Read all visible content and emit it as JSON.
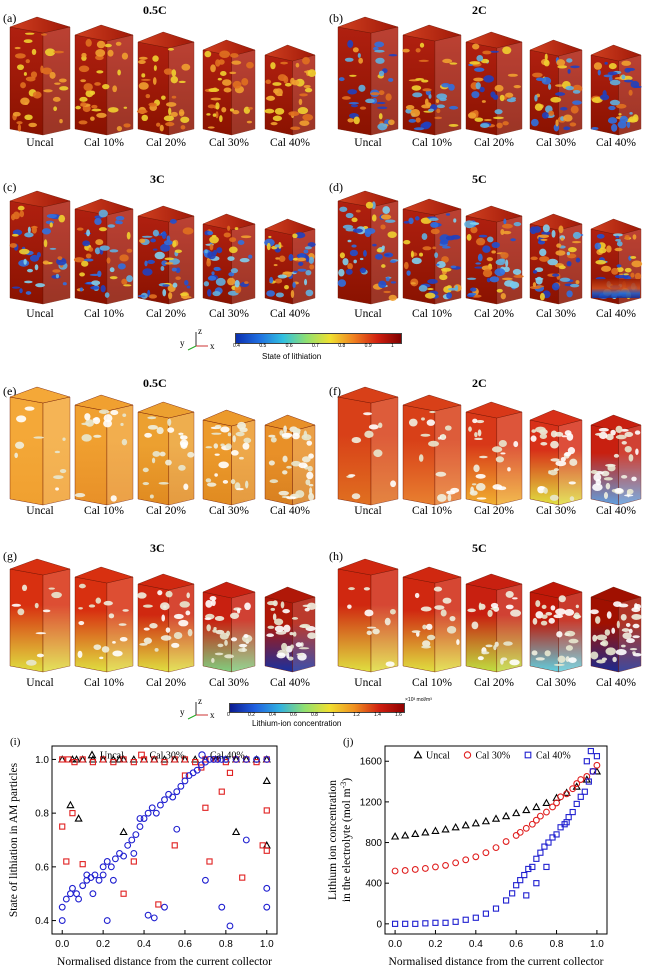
{
  "part1": {
    "colorbar_title": "State of lithiation",
    "colorbar_ticks": [
      "0.4",
      "0.5",
      "0.6",
      "0.7",
      "0.8",
      "0.9",
      "1"
    ],
    "panels": [
      {
        "label": "(a)",
        "title": "0.5C",
        "dark": 0.15
      },
      {
        "label": "(b)",
        "title": "2C",
        "dark": 0.3
      },
      {
        "label": "(c)",
        "title": "3C",
        "dark": 0.45
      },
      {
        "label": "(d)",
        "title": "5C",
        "dark": 0.6
      }
    ]
  },
  "part2": {
    "colorbar_title": "Lithium-ion concentration",
    "colorbar_unit": "×10³ mol/m³",
    "colorbar_ticks": [
      "0",
      "0.2",
      "0.4",
      "0.6",
      "0.8",
      "1",
      "1.2",
      "1.4",
      "1.6"
    ],
    "panels": [
      {
        "label": "(e)",
        "title": "0.5C"
      },
      {
        "label": "(f)",
        "title": "2C"
      },
      {
        "label": "(g)",
        "title": "3C"
      },
      {
        "label": "(h)",
        "title": "5C"
      }
    ]
  },
  "captions": [
    "Uncal",
    "Cal 10%",
    "Cal 20%",
    "Cal 30%",
    "Cal 40%"
  ],
  "axis_letters": {
    "z": "z",
    "y": "y",
    "x": "x"
  },
  "chart_data": [
    {
      "type": "scatter",
      "panel_label": "(i)",
      "xlabel": "Normalised distance from the current collector",
      "ylabel": "State of lithiation in AM particles",
      "xlim": [
        -0.05,
        1.05
      ],
      "ylim": [
        0.35,
        1.05
      ],
      "xticks": [
        "0.0",
        "0.2",
        "0.4",
        "0.6",
        "0.8",
        "1.0"
      ],
      "yticks": [
        "0.4",
        "0.6",
        "0.8",
        "1.0"
      ],
      "series": [
        {
          "name": "Uncal",
          "marker": "triangle",
          "color": "#000000",
          "x": [
            0.0,
            0.05,
            0.07,
            0.1,
            0.15,
            0.2,
            0.25,
            0.28,
            0.3,
            0.35,
            0.4,
            0.45,
            0.5,
            0.55,
            0.6,
            0.65,
            0.7,
            0.75,
            0.8,
            0.85,
            0.9,
            0.95,
            1.0,
            0.04,
            0.08,
            0.3,
            0.85,
            1.0,
            1.0
          ],
          "y": [
            1.0,
            1.0,
            1.0,
            1.0,
            1.0,
            1.0,
            1.0,
            1.0,
            1.0,
            1.0,
            1.0,
            1.0,
            1.0,
            1.0,
            1.0,
            1.0,
            1.0,
            1.0,
            1.0,
            1.0,
            1.0,
            1.0,
            1.0,
            0.83,
            0.78,
            0.73,
            0.73,
            0.92,
            0.68
          ]
        },
        {
          "name": "Cal 30%",
          "marker": "square",
          "color": "#e02020",
          "x": [
            0.0,
            0.03,
            0.06,
            0.1,
            0.15,
            0.2,
            0.25,
            0.3,
            0.35,
            0.4,
            0.45,
            0.5,
            0.55,
            0.6,
            0.65,
            0.7,
            0.75,
            0.8,
            0.85,
            0.9,
            0.95,
            1.0,
            0.0,
            0.02,
            0.1,
            0.05,
            0.3,
            0.35,
            0.47,
            0.55,
            0.7,
            0.78,
            0.82,
            0.88,
            0.98,
            1.0,
            1.0,
            0.6,
            0.68,
            0.72
          ],
          "y": [
            1.0,
            1.0,
            0.99,
            1.0,
            0.99,
            1.0,
            0.99,
            1.0,
            0.99,
            1.0,
            1.0,
            0.99,
            1.0,
            1.0,
            0.99,
            1.0,
            1.0,
            0.99,
            1.0,
            1.0,
            0.99,
            1.0,
            0.75,
            0.62,
            0.61,
            0.8,
            0.5,
            0.62,
            0.46,
            0.68,
            0.82,
            0.88,
            0.95,
            0.56,
            0.68,
            0.66,
            0.81,
            0.94,
            0.97,
            0.62
          ]
        },
        {
          "name": "Cal 40%",
          "marker": "circle",
          "color": "#2020d0",
          "x": [
            0.0,
            0.0,
            0.02,
            0.04,
            0.05,
            0.07,
            0.08,
            0.1,
            0.12,
            0.14,
            0.16,
            0.18,
            0.2,
            0.2,
            0.22,
            0.24,
            0.26,
            0.28,
            0.3,
            0.32,
            0.34,
            0.36,
            0.38,
            0.4,
            0.42,
            0.44,
            0.46,
            0.48,
            0.5,
            0.52,
            0.54,
            0.56,
            0.58,
            0.6,
            0.62,
            0.64,
            0.66,
            0.68,
            0.7,
            0.72,
            0.74,
            0.76,
            0.78,
            0.8,
            0.85,
            0.9,
            0.95,
            1.0,
            0.22,
            0.25,
            0.42,
            0.45,
            0.5,
            0.7,
            0.78,
            0.82,
            0.9,
            1.0,
            1.0,
            0.12,
            0.15,
            0.35,
            0.38,
            0.56
          ],
          "y": [
            0.4,
            0.45,
            0.48,
            0.5,
            0.52,
            0.5,
            0.48,
            0.53,
            0.55,
            0.56,
            0.57,
            0.55,
            0.57,
            0.6,
            0.62,
            0.6,
            0.63,
            0.65,
            0.64,
            0.68,
            0.7,
            0.72,
            0.75,
            0.78,
            0.8,
            0.82,
            0.8,
            0.83,
            0.85,
            0.87,
            0.86,
            0.88,
            0.9,
            0.92,
            0.94,
            0.95,
            0.96,
            0.98,
            0.99,
            1.0,
            1.0,
            1.0,
            1.0,
            1.0,
            1.0,
            1.0,
            1.0,
            1.0,
            0.4,
            0.55,
            0.42,
            0.41,
            0.45,
            0.55,
            0.45,
            0.38,
            0.7,
            0.52,
            0.45,
            0.57,
            0.5,
            0.65,
            0.78,
            0.74
          ]
        }
      ]
    },
    {
      "type": "scatter",
      "panel_label": "(j)",
      "xlabel": "Normalised distance from the current collector",
      "ylabel_line1": "Lithium ion concentration",
      "ylabel_line2": "in the electrolyte (mol m",
      "ylabel_sup": "-3",
      "ylabel_close": ")",
      "xlim": [
        -0.05,
        1.05
      ],
      "ylim": [
        -100,
        1750
      ],
      "xticks": [
        "0.0",
        "0.2",
        "0.4",
        "0.6",
        "0.8",
        "1.0"
      ],
      "yticks": [
        "0",
        "400",
        "800",
        "1200",
        "1600"
      ],
      "series": [
        {
          "name": "Uncal",
          "marker": "triangle",
          "color": "#000000",
          "x": [
            0.0,
            0.05,
            0.1,
            0.15,
            0.2,
            0.25,
            0.3,
            0.35,
            0.4,
            0.45,
            0.5,
            0.55,
            0.6,
            0.65,
            0.7,
            0.75,
            0.8,
            0.85,
            0.9,
            0.95,
            1.0
          ],
          "y": [
            860,
            870,
            885,
            900,
            915,
            930,
            950,
            970,
            990,
            1010,
            1035,
            1060,
            1090,
            1120,
            1150,
            1190,
            1240,
            1290,
            1350,
            1420,
            1500
          ]
        },
        {
          "name": "Cal 30%",
          "marker": "circle",
          "color": "#e02020",
          "x": [
            0.0,
            0.05,
            0.1,
            0.15,
            0.2,
            0.25,
            0.3,
            0.35,
            0.4,
            0.45,
            0.5,
            0.55,
            0.6,
            0.62,
            0.65,
            0.68,
            0.7,
            0.72,
            0.75,
            0.78,
            0.8,
            0.82,
            0.85,
            0.88,
            0.9,
            0.92,
            0.95,
            0.98,
            1.0
          ],
          "y": [
            520,
            525,
            535,
            545,
            560,
            575,
            600,
            630,
            660,
            700,
            750,
            810,
            870,
            900,
            940,
            980,
            1020,
            1060,
            1100,
            1150,
            1190,
            1250,
            1280,
            1330,
            1380,
            1420,
            1450,
            1500,
            1560
          ]
        },
        {
          "name": "Cal 40%",
          "marker": "square",
          "color": "#2020d0",
          "x": [
            0.0,
            0.05,
            0.1,
            0.15,
            0.2,
            0.25,
            0.3,
            0.35,
            0.4,
            0.45,
            0.5,
            0.55,
            0.58,
            0.6,
            0.62,
            0.64,
            0.66,
            0.68,
            0.7,
            0.72,
            0.74,
            0.76,
            0.78,
            0.8,
            0.82,
            0.84,
            0.86,
            0.88,
            0.9,
            0.92,
            0.94,
            0.96,
            0.98,
            1.0,
            0.65,
            0.7,
            0.75,
            0.85,
            0.95,
            0.97
          ],
          "y": [
            0,
            0,
            0,
            5,
            10,
            10,
            20,
            40,
            60,
            100,
            150,
            230,
            300,
            380,
            430,
            480,
            540,
            560,
            640,
            700,
            760,
            800,
            850,
            880,
            950,
            980,
            1050,
            1100,
            1180,
            1250,
            1300,
            1400,
            1500,
            1650,
            280,
            400,
            560,
            1000,
            1600,
            1700
          ]
        }
      ]
    }
  ]
}
